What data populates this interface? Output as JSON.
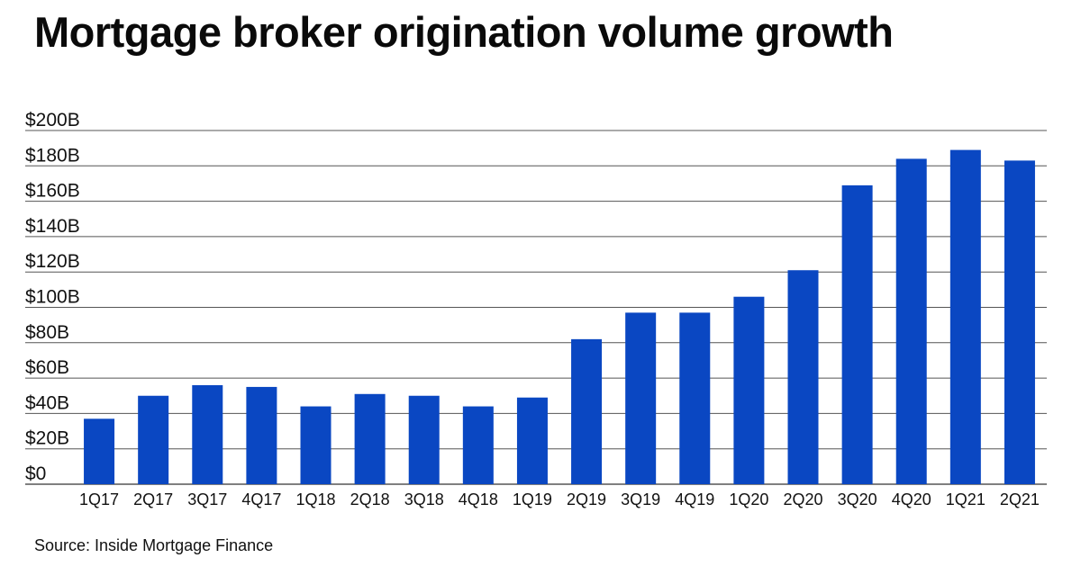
{
  "header": {
    "title": "Mortgage broker origination volume growth"
  },
  "footer": {
    "source": "Source: Inside Mortgage Finance"
  },
  "colors": {
    "bar": "#0a47c2",
    "gridline": "#555555",
    "text": "#111111"
  },
  "chart_data": {
    "type": "bar",
    "title": "Mortgage broker origination volume growth",
    "xlabel": "",
    "ylabel": "",
    "ylim": [
      0,
      200
    ],
    "yticks": [
      0,
      20,
      40,
      60,
      80,
      100,
      120,
      140,
      160,
      180,
      200
    ],
    "ytick_labels": [
      "$0",
      "$20B",
      "$40B",
      "$60B",
      "$80B",
      "$100B",
      "$120B",
      "$140B",
      "$160B",
      "$180B",
      "$200B"
    ],
    "grid": true,
    "legend": "none",
    "categories": [
      "1Q17",
      "2Q17",
      "3Q17",
      "4Q17",
      "1Q18",
      "2Q18",
      "3Q18",
      "4Q18",
      "1Q19",
      "2Q19",
      "3Q19",
      "4Q19",
      "1Q20",
      "2Q20",
      "3Q20",
      "4Q20",
      "1Q21",
      "2Q21"
    ],
    "values": [
      37,
      50,
      56,
      55,
      44,
      51,
      50,
      44,
      49,
      82,
      97,
      97,
      106,
      121,
      169,
      184,
      189,
      183
    ]
  }
}
